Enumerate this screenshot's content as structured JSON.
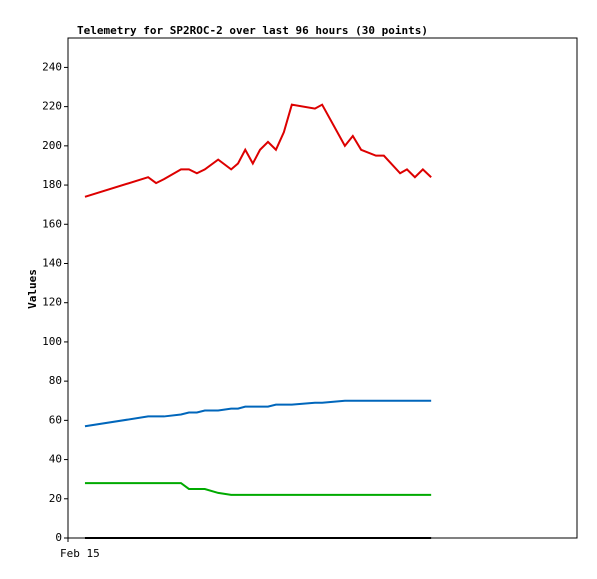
{
  "chart_data": {
    "type": "line",
    "title": "Telemetry for SP2ROC-2 over last 96 hours (30 points)",
    "y_label": "Values",
    "x": [
      4.7,
      22.2,
      24.4,
      26.6,
      31.3,
      33.5,
      35.7,
      37.9,
      41.6,
      45.2,
      47.1,
      49.1,
      51.2,
      53.2,
      55.4,
      57.6,
      59.8,
      62.0,
      68.4,
      70.4,
      76.7,
      78.9,
      81.2,
      85.3,
      87.5,
      92.0,
      93.9,
      96.1,
      98.3,
      100.6
    ],
    "xlim": [
      0,
      141
    ],
    "xticks": [
      {
        "value": 0,
        "label": "Feb 15"
      }
    ],
    "ylim": [
      0,
      255
    ],
    "yticks": [
      0,
      20,
      40,
      60,
      80,
      100,
      120,
      140,
      160,
      180,
      200,
      220,
      240
    ],
    "series": [
      {
        "color": "#dd0000",
        "values": [
          174,
          184,
          181,
          183,
          188,
          188,
          186,
          188,
          193,
          188,
          191,
          198,
          191,
          198,
          202,
          198,
          207,
          221,
          219,
          221,
          200,
          205,
          198,
          195,
          195,
          186,
          188,
          184,
          188,
          184
        ]
      },
      {
        "color": "#0066bb",
        "values": [
          57,
          62,
          62,
          62,
          63,
          64,
          64,
          65,
          65,
          66,
          66,
          67,
          67,
          67,
          67,
          68,
          68,
          68,
          69,
          69,
          70,
          70,
          70,
          70,
          70,
          70,
          70,
          70,
          70,
          70
        ]
      },
      {
        "color": "#00aa00",
        "values": [
          28,
          28,
          28,
          28,
          28,
          25,
          25,
          25,
          23,
          22,
          22,
          22,
          22,
          22,
          22,
          22,
          22,
          22,
          22,
          22,
          22,
          22,
          22,
          22,
          22,
          22,
          22,
          22,
          22,
          22
        ]
      },
      {
        "color": "#000000",
        "values": [
          0,
          0,
          0,
          0,
          0,
          0,
          0,
          0,
          0,
          0,
          0,
          0,
          0,
          0,
          0,
          0,
          0,
          0,
          0,
          0,
          0,
          0,
          0,
          0,
          0,
          0,
          0,
          0,
          0,
          0
        ]
      }
    ]
  }
}
